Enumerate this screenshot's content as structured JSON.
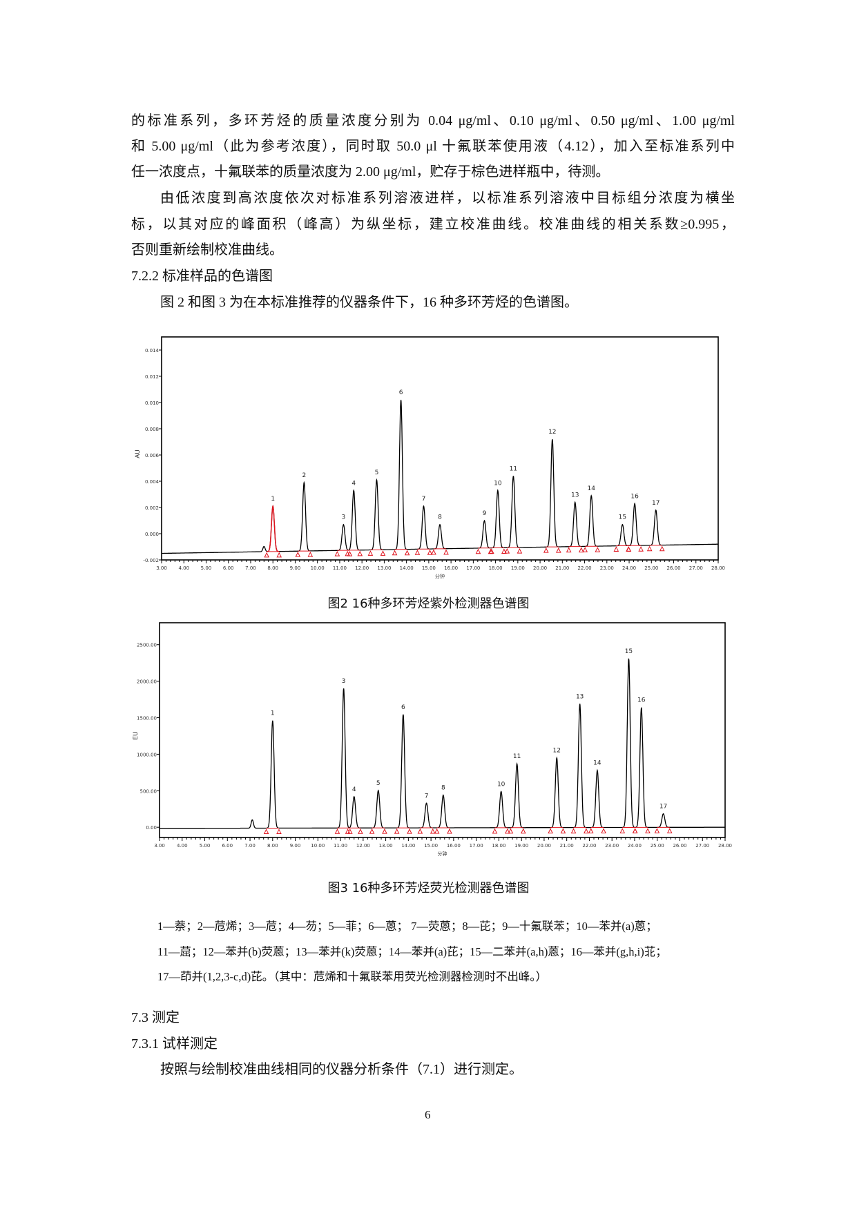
{
  "body": {
    "para1": [
      "的标准系列，多环芳烃的质量浓度分别为 0.04 μg/ml、0.10 μg/ml、0.50 μg/ml、1.00 μg/ml",
      "和 5.00 μg/ml（此为参考浓度），同时取 50.0 μl 十氟联苯使用液（4.12），加入至标准系列中",
      "任一浓度点，十氟联苯的质量浓度为 2.00 μg/ml，贮存于棕色进样瓶中，待测。"
    ],
    "para2": [
      "由低浓度到高浓度依次对标准系列溶液进样，以标准系列溶液中目标组分浓度为横坐",
      "标，以其对应的峰面积（峰高）为纵坐标，建立校准曲线。校准曲线的相关系数≥0.995，",
      "否则重新绘制校准曲线。"
    ],
    "heading_722": "7.2.2  标准样品的色谱图",
    "para3": "图 2 和图 3 为在本标准推荐的仪器条件下，16 种多环芳烃的色谱图。",
    "legend": [
      "1—萘；2—苊烯；3—苊；4—芴；5—菲；6—蒽；  7—荧蒽；8—芘；9—十氟联苯；10—苯并(a)蒽；",
      "11—䓛；12—苯并(b)荧蒽；13—苯并(k)荧蒽；14—苯并(a)芘；15—二苯并(a,h)蒽；16—苯并(g,h,i)苝；",
      "17—茚并(1,2,3-c,d)芘。（其中：苊烯和十氟联苯用荧光检测器检测时不出峰。）"
    ],
    "heading_73": "7.3   测定",
    "heading_731": "7.3.1  试样测定",
    "para4": "按照与绘制校准曲线相同的仪器分析条件（7.1）进行测定。",
    "page_number": "6"
  },
  "chart_data": [
    {
      "type": "line",
      "title": "图2    16种多环芳烃紫外检测器色谱图",
      "xlabel": "分钟",
      "ylabel": "AU",
      "xlim": [
        3,
        28
      ],
      "ylim": [
        -0.002,
        0.015
      ],
      "x_ticks": [
        "3.00",
        "4.00",
        "5.00",
        "6.00",
        "7.00",
        "8.00",
        "9.00",
        "10.00",
        "11.00",
        "12.00",
        "13.00",
        "14.00",
        "15.00",
        "16.00",
        "17.00",
        "18.00",
        "19.00",
        "20.00",
        "21.00",
        "22.00",
        "23.00",
        "24.00",
        "25.00",
        "26.00",
        "27.00",
        "28.00"
      ],
      "y_ticks": [
        "0.014",
        "0.012",
        "0.010",
        "0.008",
        "0.006",
        "0.004",
        "0.002",
        "0.000",
        "-0.002"
      ],
      "baseline": {
        "start": -0.0015,
        "end": -0.0008
      },
      "trace_color": "#000000",
      "marker_color": "#e0141e",
      "peaks": [
        {
          "label": "1",
          "rt": 8.0,
          "height": 0.0021,
          "highlight": true
        },
        {
          "label": "2",
          "rt": 9.4,
          "height": 0.0039
        },
        {
          "label": "3",
          "rt": 11.17,
          "height": 0.0007
        },
        {
          "label": "4",
          "rt": 11.63,
          "height": 0.0033
        },
        {
          "label": "5",
          "rt": 12.66,
          "height": 0.0041
        },
        {
          "label": "6",
          "rt": 13.75,
          "height": 0.0102
        },
        {
          "label": "7",
          "rt": 14.77,
          "height": 0.0021
        },
        {
          "label": "8",
          "rt": 15.5,
          "height": 0.0007
        },
        {
          "label": "9",
          "rt": 17.5,
          "height": 0.001
        },
        {
          "label": "10",
          "rt": 18.1,
          "height": 0.0033
        },
        {
          "label": "11",
          "rt": 18.8,
          "height": 0.0044
        },
        {
          "label": "12",
          "rt": 20.55,
          "height": 0.0072
        },
        {
          "label": "13",
          "rt": 21.57,
          "height": 0.0024
        },
        {
          "label": "14",
          "rt": 22.3,
          "height": 0.0029
        },
        {
          "label": "15",
          "rt": 23.7,
          "height": 0.0007
        },
        {
          "label": "16",
          "rt": 24.25,
          "height": 0.0023
        },
        {
          "label": "17",
          "rt": 25.2,
          "height": 0.0018
        }
      ]
    },
    {
      "type": "line",
      "title": "图3    16种多环芳烃荧光检测器色谱图",
      "xlabel": "分钟",
      "ylabel": "EU",
      "xlim": [
        3,
        28
      ],
      "ylim": [
        -140,
        2800
      ],
      "x_ticks": [
        "3.00",
        "4.00",
        "5.00",
        "6.00",
        "7.00",
        "8.00",
        "9.00",
        "10.00",
        "11.00",
        "12.00",
        "13.00",
        "14.00",
        "15.00",
        "16.00",
        "17.00",
        "18.00",
        "19.00",
        "20.00",
        "21.00",
        "22.00",
        "23.00",
        "24.00",
        "25.00",
        "26.00",
        "27.00",
        "28.00"
      ],
      "y_ticks": [
        "2500.00",
        "2000.00",
        "1500.00",
        "1000.00",
        "500.00",
        "0.00"
      ],
      "baseline": {
        "start": -15,
        "end": 0
      },
      "trace_color": "#000000",
      "marker_color": "#e0141e",
      "peaks": [
        {
          "label": "1",
          "rt": 8.0,
          "height": 1460
        },
        {
          "label": "3",
          "rt": 11.14,
          "height": 1900
        },
        {
          "label": "4",
          "rt": 11.6,
          "height": 420
        },
        {
          "label": "5",
          "rt": 12.67,
          "height": 505
        },
        {
          "label": "6",
          "rt": 13.77,
          "height": 1545
        },
        {
          "label": "7",
          "rt": 14.8,
          "height": 330
        },
        {
          "label": "8",
          "rt": 15.54,
          "height": 440
        },
        {
          "label": "10",
          "rt": 18.1,
          "height": 490
        },
        {
          "label": "11",
          "rt": 18.8,
          "height": 870
        },
        {
          "label": "12",
          "rt": 20.56,
          "height": 950
        },
        {
          "label": "13",
          "rt": 21.58,
          "height": 1690
        },
        {
          "label": "14",
          "rt": 22.35,
          "height": 780
        },
        {
          "label": "15",
          "rt": 23.74,
          "height": 2310
        },
        {
          "label": "16",
          "rt": 24.3,
          "height": 1640
        },
        {
          "label": "17",
          "rt": 25.27,
          "height": 185
        }
      ]
    }
  ]
}
